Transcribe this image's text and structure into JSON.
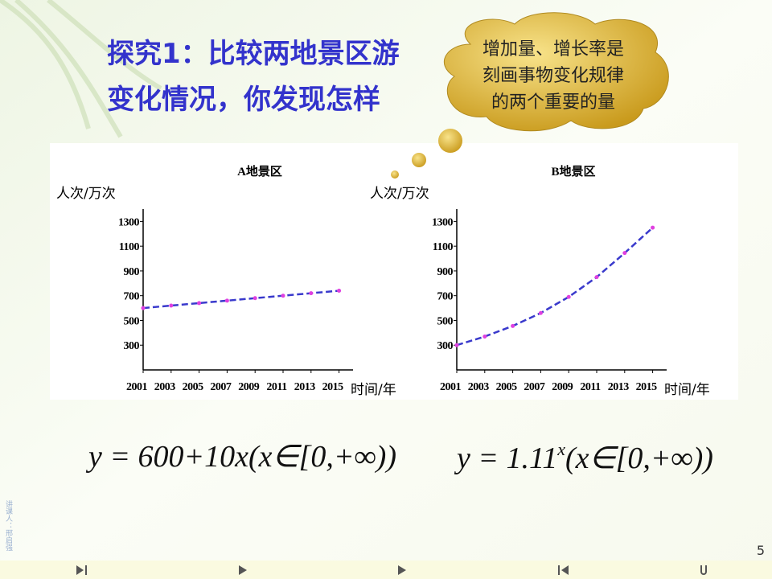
{
  "slide_title": {
    "lines": [
      "探究1：比较两地景区游",
      "变化情况，你发现怎样"
    ]
  },
  "bubble": {
    "lines": [
      "增加量、增长率是",
      "刻画事物变化规律",
      "的两个重要的量"
    ]
  },
  "chart_data": [
    {
      "type": "line",
      "title": "A地景区",
      "y_label": "人次/万次",
      "x_label": "时间/年",
      "x": [
        2001,
        2003,
        2005,
        2007,
        2009,
        2011,
        2013,
        2015
      ],
      "values": [
        600,
        620,
        640,
        660,
        680,
        700,
        720,
        740
      ],
      "color": "#3a3acc",
      "marker_color": "#e040e0",
      "xlim": [
        2001,
        2016
      ],
      "ylim": [
        100,
        1400
      ],
      "xticks": [
        2001,
        2003,
        2005,
        2007,
        2009,
        2011,
        2013,
        2015
      ],
      "yticks": [
        300,
        500,
        700,
        900,
        1100,
        1300
      ]
    },
    {
      "type": "line",
      "title": "B地景区",
      "y_label": "人次/万次",
      "x_label": "时间/年",
      "x": [
        2001,
        2003,
        2005,
        2007,
        2009,
        2011,
        2013,
        2015
      ],
      "values": [
        300,
        370,
        455,
        560,
        690,
        850,
        1045,
        1250
      ],
      "color": "#3a3acc",
      "marker_color": "#e040e0",
      "xlim": [
        2001,
        2016
      ],
      "ylim": [
        100,
        1400
      ],
      "xticks": [
        2001,
        2003,
        2005,
        2007,
        2009,
        2011,
        2013,
        2015
      ],
      "yticks": [
        300,
        500,
        700,
        900,
        1100,
        1300
      ]
    }
  ],
  "formulas": {
    "a": "y = 600+10x(x∈[0,+∞))",
    "b_base": "y = 1.11",
    "b_exp": "x",
    "b_rest": "(x∈[0,+∞))"
  },
  "side_note": "讲课人：邢启强",
  "page_number": "5"
}
